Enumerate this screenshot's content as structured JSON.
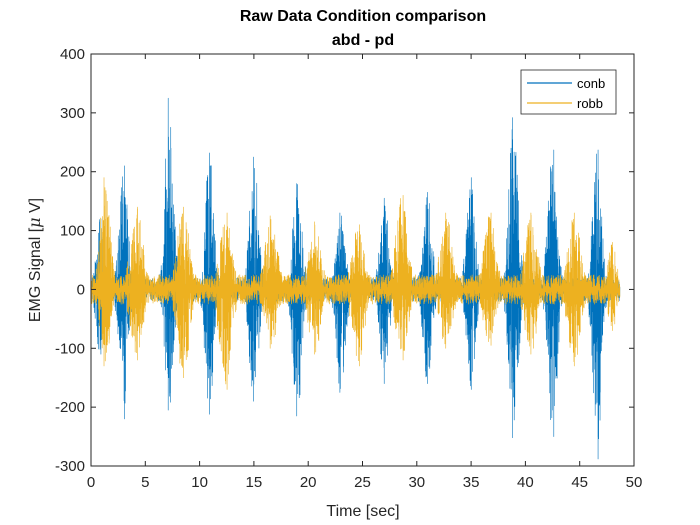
{
  "chart_data": {
    "type": "line",
    "title": "Raw Data Condition comparison",
    "subtitle": "abd - pd",
    "xlabel": "Time [sec]",
    "ylabel_prefix": "EMG Signal [",
    "ylabel_mu": "μ",
    "ylabel_suffix": " V]",
    "xlim": [
      0,
      50
    ],
    "ylim": [
      -300,
      400
    ],
    "xticks": [
      0,
      5,
      10,
      15,
      20,
      25,
      30,
      35,
      40,
      45,
      50
    ],
    "yticks": [
      -300,
      -200,
      -100,
      0,
      100,
      200,
      300,
      400
    ],
    "xticklabels": [
      "0",
      "5",
      "10",
      "15",
      "20",
      "25",
      "30",
      "35",
      "40",
      "45",
      "50"
    ],
    "yticklabels": [
      "-300",
      "-200",
      "-100",
      "0",
      "100",
      "200",
      "300",
      "400"
    ],
    "grid": false,
    "legend_position": "top-right",
    "series": [
      {
        "name": "conb",
        "color": "#0072BD",
        "data_range": [
          0,
          48.7
        ],
        "baseline_amp": 20,
        "bursts": [
          {
            "center": 0.8,
            "width": 1.2,
            "max": 120,
            "min": -110
          },
          {
            "center": 3.0,
            "width": 1.4,
            "max": 210,
            "min": -220
          },
          {
            "center": 7.2,
            "width": 1.4,
            "max": 325,
            "min": -205
          },
          {
            "center": 10.9,
            "width": 1.4,
            "max": 232,
            "min": -212
          },
          {
            "center": 15.0,
            "width": 1.5,
            "max": 225,
            "min": -190
          },
          {
            "center": 19.0,
            "width": 1.5,
            "max": 180,
            "min": -215
          },
          {
            "center": 23.0,
            "width": 1.5,
            "max": 130,
            "min": -175
          },
          {
            "center": 27.0,
            "width": 1.5,
            "max": 155,
            "min": -160
          },
          {
            "center": 31.0,
            "width": 1.5,
            "max": 165,
            "min": -160
          },
          {
            "center": 35.0,
            "width": 1.5,
            "max": 190,
            "min": -170
          },
          {
            "center": 38.9,
            "width": 1.5,
            "max": 292,
            "min": -252
          },
          {
            "center": 42.5,
            "width": 1.5,
            "max": 237,
            "min": -250
          },
          {
            "center": 46.6,
            "width": 1.4,
            "max": 237,
            "min": -288
          }
        ]
      },
      {
        "name": "robb",
        "color": "#EDB120",
        "data_range": [
          0,
          48.7
        ],
        "baseline_amp": 25,
        "bursts": [
          {
            "center": 1.3,
            "width": 1.6,
            "max": 190,
            "min": -130
          },
          {
            "center": 4.2,
            "width": 2.0,
            "max": 140,
            "min": -120
          },
          {
            "center": 8.5,
            "width": 2.0,
            "max": 140,
            "min": -150
          },
          {
            "center": 12.4,
            "width": 2.0,
            "max": 130,
            "min": -170
          },
          {
            "center": 16.6,
            "width": 2.0,
            "max": 125,
            "min": -100
          },
          {
            "center": 20.6,
            "width": 2.0,
            "max": 115,
            "min": -110
          },
          {
            "center": 24.6,
            "width": 2.0,
            "max": 110,
            "min": -130
          },
          {
            "center": 28.6,
            "width": 2.0,
            "max": 160,
            "min": -120
          },
          {
            "center": 32.7,
            "width": 2.0,
            "max": 130,
            "min": -100
          },
          {
            "center": 36.7,
            "width": 2.0,
            "max": 130,
            "min": -95
          },
          {
            "center": 40.5,
            "width": 2.0,
            "max": 130,
            "min": -110
          },
          {
            "center": 44.5,
            "width": 2.0,
            "max": 130,
            "min": -130
          },
          {
            "center": 48.0,
            "width": 1.4,
            "max": 80,
            "min": -70
          }
        ]
      }
    ]
  }
}
